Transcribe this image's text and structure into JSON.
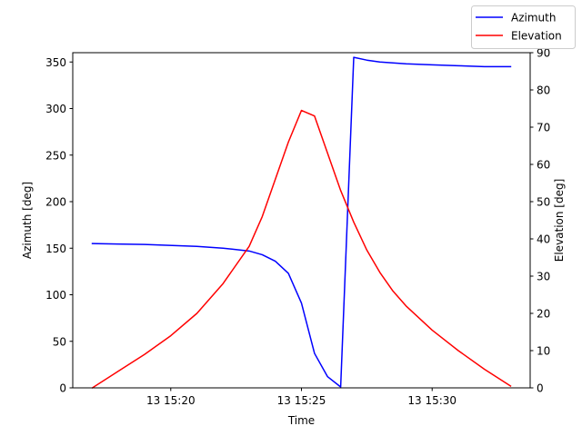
{
  "chart_data": {
    "type": "line",
    "xlabel": "Time",
    "ylabel_left": "Azimuth [deg]",
    "ylabel_right": "Elevation [deg]",
    "x_ticks": [
      "13 15:20",
      "13 15:25",
      "13 15:30"
    ],
    "x_tick_values": [
      "15:20",
      "15:25",
      "15:30"
    ],
    "xlim": [
      "15:16:15",
      "15:33:45"
    ],
    "ylim_left": [
      0,
      360
    ],
    "ylim_right": [
      0,
      90
    ],
    "y_ticks_left": [
      0,
      50,
      100,
      150,
      200,
      250,
      300,
      350
    ],
    "y_ticks_right": [
      0,
      10,
      20,
      30,
      40,
      50,
      60,
      70,
      80,
      90
    ],
    "grid": false,
    "legend_position": "top-right",
    "series": [
      {
        "name": "Azimuth",
        "axis": "left",
        "color": "#0000ff",
        "x": [
          "15:17:00",
          "15:19:00",
          "15:21:00",
          "15:22:00",
          "15:23:00",
          "15:23:30",
          "15:24:00",
          "15:24:30",
          "15:25:00",
          "15:25:30",
          "15:26:00",
          "15:26:30",
          "15:27:00",
          "15:27:30",
          "15:28:00",
          "15:29:00",
          "15:30:00",
          "15:31:00",
          "15:32:00",
          "15:33:00"
        ],
        "y": [
          155,
          154,
          152,
          150,
          147,
          143,
          136,
          123,
          91,
          37,
          12,
          1,
          355,
          352,
          350,
          348,
          347,
          346,
          345,
          345
        ]
      },
      {
        "name": "Elevation",
        "axis": "right",
        "color": "#ff0000",
        "x": [
          "15:17:00",
          "15:18:00",
          "15:19:00",
          "15:20:00",
          "15:21:00",
          "15:22:00",
          "15:23:00",
          "15:23:30",
          "15:24:00",
          "15:24:30",
          "15:25:00",
          "15:25:30",
          "15:26:00",
          "15:26:30",
          "15:27:00",
          "15:27:30",
          "15:28:00",
          "15:28:30",
          "15:29:00",
          "15:30:00",
          "15:31:00",
          "15:32:00",
          "15:33:00"
        ],
        "y": [
          0,
          4.5,
          9,
          14,
          20,
          28,
          38,
          46,
          56,
          66,
          74.5,
          73,
          63,
          53,
          44.5,
          37,
          31,
          26,
          22,
          15.5,
          10,
          5,
          0.5
        ]
      }
    ]
  }
}
